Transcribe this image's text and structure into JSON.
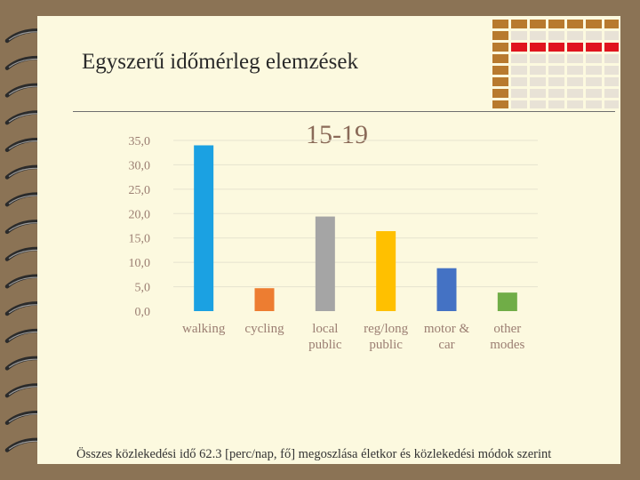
{
  "slide": {
    "title": "Egyszerű időmérleg elemzések",
    "footer": "Összes közlekedési idő 62.3 [perc/nap, fő] megoszlása életkor és közlekedési módok szerint"
  },
  "colors": {
    "background": "#8B7355",
    "page": "#FCF9DF",
    "deco_brown": "#B87A2E",
    "deco_red": "#E0141E",
    "deco_light": "#E8E2D6"
  },
  "chart_data": {
    "type": "bar",
    "title": "15-19",
    "categories": [
      [
        "walking"
      ],
      [
        "cycling"
      ],
      [
        "local",
        "public"
      ],
      [
        "reg/long",
        "public"
      ],
      [
        "motor &",
        "car"
      ],
      [
        "other",
        "modes"
      ]
    ],
    "values": [
      34.0,
      4.7,
      19.4,
      16.4,
      8.8,
      3.8
    ],
    "bar_colors": [
      "#1BA1E2",
      "#ED7D31",
      "#A5A5A5",
      "#FFC000",
      "#4472C4",
      "#70AD47"
    ],
    "yticks": [
      "0,0",
      "5,0",
      "10,0",
      "15,0",
      "20,0",
      "25,0",
      "30,0",
      "35,0"
    ],
    "ylim": [
      0,
      35
    ],
    "grid": true,
    "legend": "none"
  }
}
